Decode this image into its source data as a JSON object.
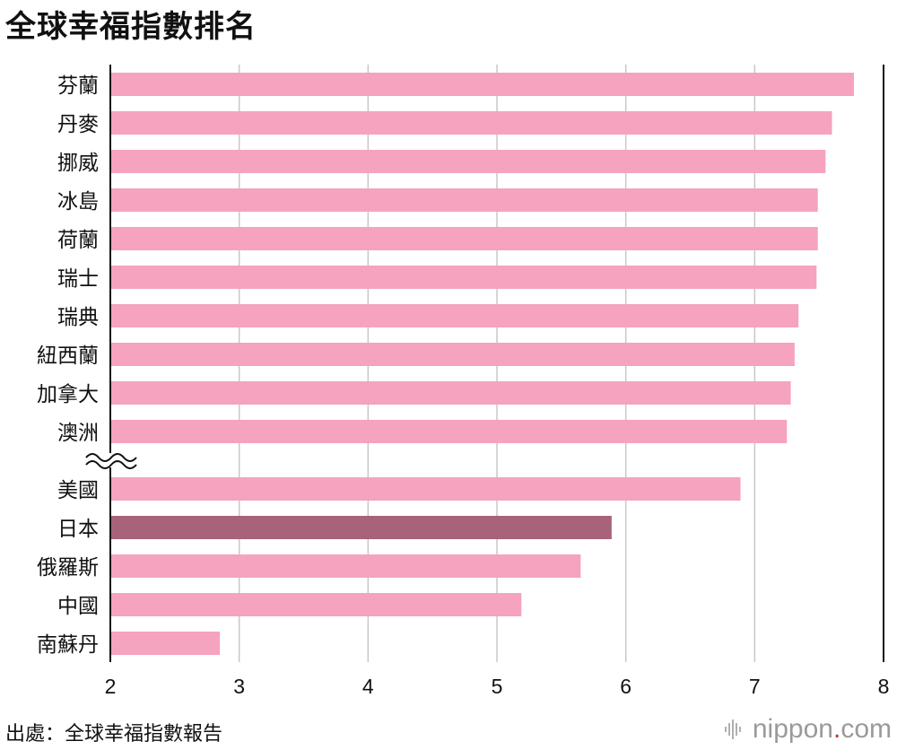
{
  "title": "全球幸福指數排名",
  "source": "出處：全球幸福指數報告",
  "brand": {
    "name": "nippon",
    "dot": ".",
    "tld": "com",
    "icon": "soundwave-icon"
  },
  "colors": {
    "bar": "#f5a3bf",
    "highlight": "#a8637a",
    "grid": "#c8c8c8",
    "axis": "#111111"
  },
  "chart_data": {
    "type": "bar",
    "orientation": "horizontal",
    "categories": [
      "芬蘭",
      "丹麥",
      "挪威",
      "冰島",
      "荷蘭",
      "瑞士",
      "瑞典",
      "紐西蘭",
      "加拿大",
      "澳洲",
      "美國",
      "日本",
      "俄羅斯",
      "中國",
      "南蘇丹"
    ],
    "values": [
      7.77,
      7.6,
      7.55,
      7.49,
      7.49,
      7.48,
      7.34,
      7.31,
      7.28,
      7.25,
      6.89,
      5.89,
      5.65,
      5.19,
      2.85
    ],
    "highlight": "日本",
    "axis_break_after": "澳洲",
    "xlim": [
      2,
      8
    ],
    "xticks": [
      "2",
      "3",
      "4",
      "5",
      "6",
      "7",
      "8"
    ],
    "grid": true
  }
}
